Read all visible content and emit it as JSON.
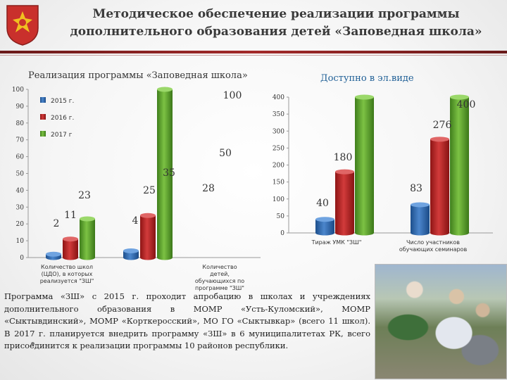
{
  "header": {
    "title_line1": "Методическое обеспечение реализации программы",
    "title_line2": "дополнительного образования детей «Заповедная школа»"
  },
  "colors": {
    "accent": "#8a2222",
    "blue_series": "#2a63a8",
    "red_series": "#b52020",
    "green_series": "#5aa02c"
  },
  "chart_data": [
    {
      "type": "bar",
      "title": "Реализация программы «Заповедная школа»",
      "categories": [
        "Количество школ (ЦДО), в которых реализуется \"ЗШ\"",
        "Количество детей, обучающихся по программе \"ЗШ\""
      ],
      "series": [
        {
          "name": "2015 г.",
          "values": [
            2,
            4
          ]
        },
        {
          "name": "2016 г.",
          "values": [
            11,
            25
          ]
        },
        {
          "name": "2017 г",
          "values": [
            23,
            100
          ]
        }
      ],
      "data_labels": [
        [
          "2",
          "11",
          "23"
        ],
        [
          "4",
          "25",
          "100"
        ]
      ],
      "extra_labels": [
        "28",
        "35",
        "50"
      ],
      "ylim": [
        0,
        100
      ],
      "yticks": [
        0,
        10,
        20,
        30,
        40,
        50,
        60,
        70,
        80,
        90,
        100
      ],
      "legend": "top-left"
    },
    {
      "type": "bar",
      "title": "Доступно в эл.виде",
      "categories": [
        "Тираж УМК \"ЗШ\"",
        "Число участников обучающих семинаров"
      ],
      "series": [
        {
          "name": "2015",
          "values": [
            40,
            83
          ]
        },
        {
          "name": "2016",
          "values": [
            180,
            276
          ]
        },
        {
          "name": "2017",
          "values": [
            400,
            400
          ]
        }
      ],
      "data_labels": [
        [
          "40",
          "180",
          "400"
        ],
        [
          "83",
          "276",
          "400"
        ]
      ],
      "ylim": [
        0,
        400
      ],
      "yticks": [
        0,
        50,
        100,
        150,
        200,
        250,
        300,
        350,
        400
      ]
    }
  ],
  "body_text": "Программа «ЗШ» с 2015 г. проходит апробацию в школах и учреждениях дополнительного образования в МОМР «Усть-Куломский», МОМР «Сыктывдинский», МОМР «Корткеросский», МО ГО «Сыктывкар» (всего 11 школ). В 2017 г. планируется внедрить программу «ЗШ» в 6 муниципалитетах РК, всего присоединится к реализации программы 10 районов республики."
}
